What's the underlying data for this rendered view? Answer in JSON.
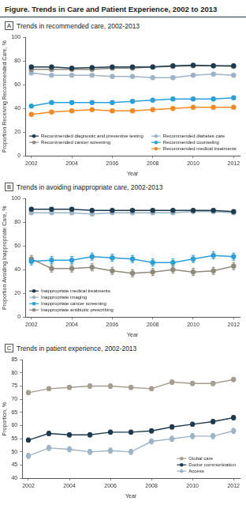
{
  "title": "Figure. Trends in Care and Patient Experience, 2002 to 2013",
  "chart_data": [
    {
      "type": "line",
      "panel": "A",
      "title": "Trends in recommended care, 2002-2013",
      "xlabel": "Year",
      "ylabel": "Proportion Receiving Recommended Care, %",
      "x": [
        2002,
        2003,
        2004,
        2005,
        2006,
        2007,
        2008,
        2009,
        2010,
        2011,
        2012
      ],
      "xlim": [
        2001.7,
        2012.3
      ],
      "xticks": [
        2002,
        2004,
        2006,
        2008,
        2010,
        2012
      ],
      "ylim": [
        0,
        100
      ],
      "yticks": [
        0,
        20,
        40,
        60,
        80,
        100
      ],
      "grid": false,
      "legend": "bottom",
      "marker": "circle",
      "series": [
        {
          "name": "Recommended diagnostic and preventive testing",
          "color": "#1d3b4f",
          "values": [
            75,
            75,
            74,
            74.5,
            75,
            75,
            75,
            76,
            76.5,
            76,
            76
          ]
        },
        {
          "name": "Recommended cancer screening",
          "color": "#8e8a7c",
          "values": [
            73,
            73,
            73,
            73,
            74,
            74,
            75,
            75.5,
            76,
            76,
            75.5
          ]
        },
        {
          "name": "Recommended diabetes care",
          "color": "#9db4c6",
          "values": [
            70,
            68,
            68,
            68,
            67,
            67,
            66,
            66,
            68,
            69,
            68
          ]
        },
        {
          "name": "Recommended counseling",
          "color": "#2a9fd8",
          "values": [
            42,
            45,
            45,
            45,
            45,
            46,
            47,
            48,
            48,
            48,
            49
          ]
        },
        {
          "name": "Recommended medical treatments",
          "color": "#f08a24",
          "values": [
            35,
            37,
            38,
            39,
            38,
            38,
            39,
            40,
            41,
            41,
            41
          ]
        }
      ]
    },
    {
      "type": "line",
      "panel": "B",
      "title": "Trends in avoiding inappropriate care, 2002-2013",
      "xlabel": "Year",
      "ylabel": "Proportion Avoiding Inappropriate Care, %",
      "x": [
        2002,
        2003,
        2004,
        2005,
        2006,
        2007,
        2008,
        2009,
        2010,
        2011,
        2012
      ],
      "xlim": [
        2001.7,
        2012.3
      ],
      "xticks": [
        2002,
        2004,
        2006,
        2008,
        2010,
        2012
      ],
      "ylim": [
        0,
        100
      ],
      "yticks": [
        0,
        20,
        40,
        60,
        80,
        100
      ],
      "grid": false,
      "legend": "lower left",
      "marker": "circle",
      "series": [
        {
          "name": "Inappropriate medical treatments",
          "color": "#1d3b4f",
          "values": [
            91,
            91,
            91,
            90,
            90,
            90,
            90,
            90,
            90,
            90,
            89
          ],
          "errors": [
            1,
            1,
            1,
            1,
            1,
            1,
            1,
            1,
            1,
            1,
            1
          ]
        },
        {
          "name": "Inappropriate imaging",
          "color": "#9db4c6",
          "values": [
            88,
            88,
            88,
            87,
            88,
            88,
            88,
            88,
            89,
            89,
            88
          ],
          "errors": [
            1,
            1,
            1,
            1,
            1,
            1,
            1,
            1,
            1,
            1,
            1
          ]
        },
        {
          "name": "Inappropriate cancer screening",
          "color": "#2a9fd8",
          "values": [
            47,
            48,
            48,
            51,
            50,
            49,
            46,
            46,
            49,
            52,
            51
          ],
          "errors": [
            3,
            3,
            3,
            3,
            3,
            3,
            3,
            3,
            3,
            3,
            3
          ]
        },
        {
          "name": "Inappropriate antibiotic prescribing",
          "color": "#8e8a7c",
          "values": [
            49,
            41,
            41,
            42,
            39,
            37,
            38,
            40,
            38,
            39,
            43
          ],
          "errors": [
            3,
            3,
            3,
            3,
            3,
            3,
            3,
            3,
            3,
            3,
            3
          ]
        }
      ]
    },
    {
      "type": "line",
      "panel": "C",
      "title": "Trends in patient experience, 2002-2013",
      "xlabel": "Year",
      "ylabel": "Proportion, %",
      "x": [
        2002,
        2003,
        2004,
        2005,
        2006,
        2007,
        2008,
        2009,
        2010,
        2011,
        2012
      ],
      "xlim": [
        2001.7,
        2012.3
      ],
      "xticks": [
        2002,
        2004,
        2006,
        2008,
        2010,
        2012
      ],
      "ylim": [
        40,
        85
      ],
      "yticks": [
        40,
        45,
        50,
        55,
        60,
        65,
        70,
        75,
        80,
        85
      ],
      "grid": false,
      "legend": "lower right",
      "marker": "circle",
      "series": [
        {
          "name": "Global care",
          "color": "#a59d8e",
          "values": [
            72.5,
            74,
            74.5,
            75,
            75,
            74.5,
            74,
            76.5,
            76,
            76,
            77.5
          ],
          "errors": [
            0.8,
            0.8,
            0.8,
            0.8,
            0.8,
            0.8,
            0.8,
            0.8,
            0.8,
            0.8,
            0.8
          ]
        },
        {
          "name": "Doctor communication",
          "color": "#1d3b4f",
          "values": [
            54.5,
            57,
            56.5,
            56.5,
            57.5,
            57.5,
            58,
            59.5,
            60.5,
            61.5,
            63
          ],
          "errors": [
            0.8,
            0.8,
            0.8,
            0.8,
            0.8,
            0.8,
            0.8,
            0.8,
            0.8,
            0.8,
            0.8
          ]
        },
        {
          "name": "Access",
          "color": "#9db4c6",
          "values": [
            48.5,
            51.5,
            51,
            50,
            50.5,
            50,
            54,
            55,
            56,
            56,
            58
          ],
          "errors": [
            1,
            1,
            1,
            1,
            1,
            1,
            1,
            1,
            1,
            1,
            1
          ]
        }
      ]
    }
  ]
}
